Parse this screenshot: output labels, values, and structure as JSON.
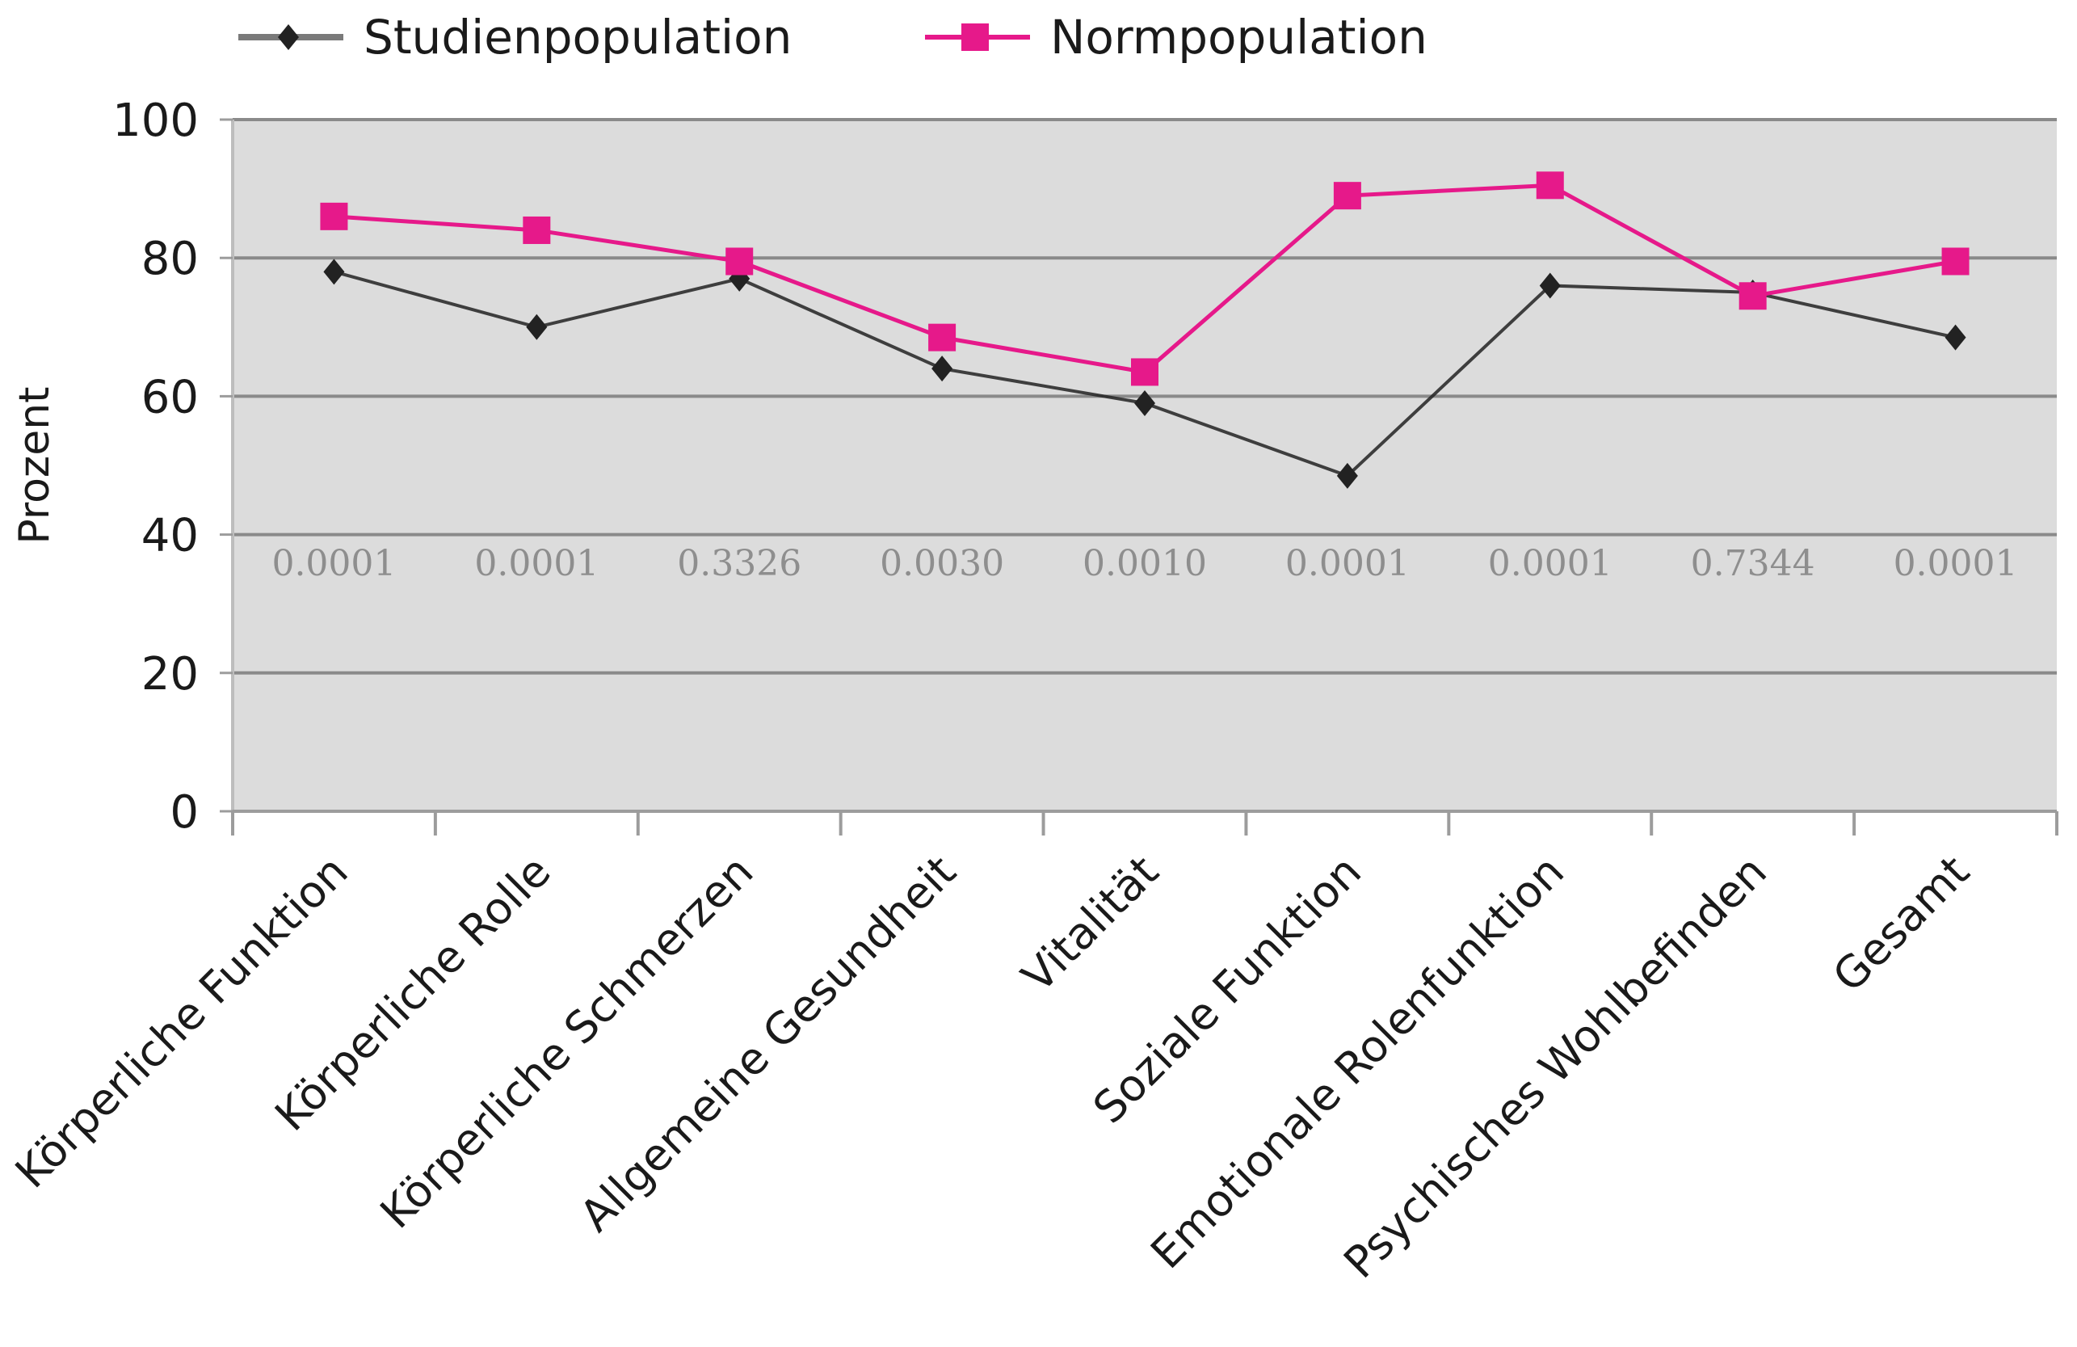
{
  "chart_data": {
    "type": "line",
    "title": "",
    "xlabel": "",
    "ylabel": "Prozent",
    "ylim": [
      0,
      100
    ],
    "yticks": [
      0,
      20,
      40,
      60,
      80,
      100
    ],
    "grid": true,
    "legend_position": "top",
    "categories": [
      "Körperliche Funktion",
      "Körperliche Rolle",
      "Körperliche Schmerzen",
      "Allgemeine Gesundheit",
      "Vitalität",
      "Soziale Funktion",
      "Emotionale Rolenfunktion",
      "Psychisches Wohlbefinden",
      "Gesamt"
    ],
    "series": [
      {
        "name": "Studienpopulation",
        "color": "#222222",
        "marker": "diamond",
        "values": [
          78,
          70,
          77,
          64,
          59,
          48.5,
          76,
          75,
          68.5
        ]
      },
      {
        "name": "Normpopulation",
        "color": "#e6198a",
        "marker": "square",
        "values": [
          86,
          84,
          79.5,
          68.5,
          63.5,
          89,
          90.5,
          74.5,
          79.5
        ]
      }
    ],
    "annotations": {
      "y_value": 36,
      "labels": [
        "0.0001",
        "0.0001",
        "0.3326",
        "0.0030",
        "0.0010",
        "0.0001",
        "0.0001",
        "0.7344",
        "0.0001"
      ]
    }
  }
}
